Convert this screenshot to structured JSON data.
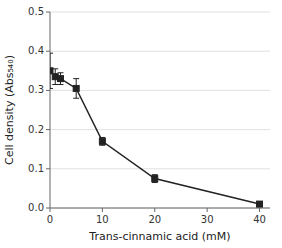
{
  "chart_data": {
    "type": "line",
    "xlabel": "Trans-cinnamic acid (mM)",
    "ylabel": "Cell density (Abs₅₄₀)",
    "x": [
      0,
      1,
      2,
      5,
      10,
      20,
      40
    ],
    "values": [
      0.35,
      0.335,
      0.33,
      0.305,
      0.17,
      0.075,
      0.01
    ],
    "errors": [
      0.045,
      0.02,
      0.015,
      0.025,
      0.01,
      0.01,
      0.005
    ],
    "color": "#222222",
    "marker": "square",
    "line_style": "solid",
    "xlim": [
      0,
      42
    ],
    "ylim": [
      0,
      0.5
    ],
    "xticks": [
      0,
      10,
      20,
      30,
      40
    ],
    "yticks": [
      {
        "value": 0,
        "label": "0.0"
      },
      0.1,
      0.2,
      0.3,
      0.4,
      0.5
    ],
    "grid": "y"
  }
}
